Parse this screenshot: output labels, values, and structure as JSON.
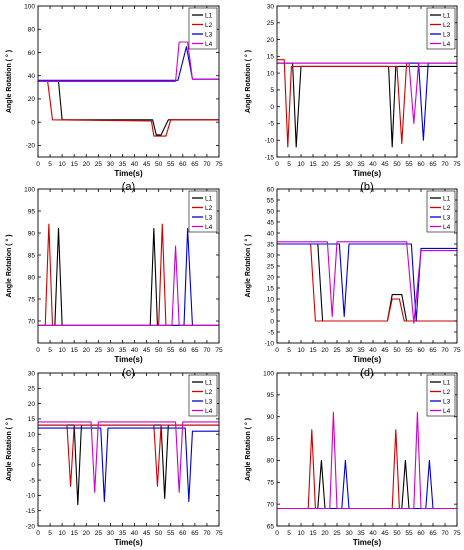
{
  "colors": {
    "L1": "#000000",
    "L2": "#cc0000",
    "L3": "#0000cc",
    "L4": "#cc00cc",
    "frame": "#000000"
  },
  "chart_data": [
    {
      "panel": "(a)",
      "type": "line",
      "xlabel": "Time(s)",
      "ylabel": "Angle Rotation ( ° )",
      "xlim": [
        0,
        75
      ],
      "ylim": [
        -30,
        100
      ],
      "xticks": [
        0,
        5,
        10,
        15,
        20,
        25,
        30,
        35,
        40,
        45,
        50,
        55,
        60,
        65,
        70,
        75
      ],
      "yticks": [
        -20,
        0,
        20,
        40,
        60,
        80,
        100
      ],
      "legend": [
        "L1",
        "L2",
        "L3",
        "L4"
      ],
      "series": [
        {
          "name": "L1",
          "x": [
            0,
            8.5,
            10,
            47.5,
            49,
            51,
            54,
            58,
            75
          ],
          "y": [
            35,
            35,
            2,
            2,
            -11,
            -11,
            2,
            2,
            2
          ]
        },
        {
          "name": "L2",
          "x": [
            0,
            4,
            6,
            47,
            48,
            53,
            55,
            75
          ],
          "y": [
            35,
            35,
            2,
            1,
            -12,
            -12,
            2,
            2
          ]
        },
        {
          "name": "L3",
          "x": [
            0,
            58,
            61.5,
            64,
            75
          ],
          "y": [
            36,
            36,
            65,
            37,
            37
          ]
        },
        {
          "name": "L4",
          "x": [
            0,
            57,
            58.5,
            62,
            64,
            75
          ],
          "y": [
            35,
            35,
            69,
            69,
            37,
            37
          ]
        }
      ]
    },
    {
      "panel": "(b)",
      "type": "line",
      "xlabel": "Time(s)",
      "ylabel": "Angle Rotation ( ° )",
      "xlim": [
        0,
        75
      ],
      "ylim": [
        -15,
        30
      ],
      "xticks": [
        0,
        5,
        10,
        15,
        20,
        25,
        30,
        35,
        40,
        45,
        50,
        55,
        60,
        65,
        70,
        75
      ],
      "yticks": [
        -15,
        -10,
        -5,
        0,
        5,
        10,
        15,
        20,
        25,
        30
      ],
      "legend": [
        "L1",
        "L2",
        "L3",
        "L4"
      ],
      "series": [
        {
          "name": "L1",
          "x": [
            0,
            6.5,
            8,
            10,
            46.5,
            48,
            49.5,
            75
          ],
          "y": [
            13,
            13,
            -12,
            12,
            12,
            -12,
            12,
            12
          ]
        },
        {
          "name": "L2",
          "x": [
            0,
            3,
            4.5,
            6,
            50,
            52,
            54,
            75
          ],
          "y": [
            14,
            14,
            -12,
            12,
            12,
            -11,
            13,
            13
          ]
        },
        {
          "name": "L3",
          "x": [
            0,
            59,
            61,
            63,
            75
          ],
          "y": [
            13,
            13,
            -10,
            13,
            13
          ]
        },
        {
          "name": "L4",
          "x": [
            0,
            55,
            57,
            59,
            75
          ],
          "y": [
            13,
            13,
            -5,
            13,
            13
          ]
        }
      ]
    },
    {
      "panel": "(c)",
      "type": "line",
      "xlabel": "Time(s)",
      "ylabel": "Angle Rotation ( ° )",
      "xlim": [
        0,
        75
      ],
      "ylim": [
        65,
        100
      ],
      "xticks": [
        0,
        5,
        10,
        15,
        20,
        25,
        30,
        35,
        40,
        45,
        50,
        55,
        60,
        65,
        70,
        75
      ],
      "yticks": [
        70,
        75,
        80,
        85,
        90,
        95,
        100
      ],
      "legend": [
        "L1",
        "L2",
        "L3",
        "L4"
      ],
      "series": [
        {
          "name": "L1",
          "x": [
            0,
            7,
            8.5,
            10,
            46.5,
            48,
            49.5,
            75
          ],
          "y": [
            69,
            69,
            91,
            69,
            69,
            91,
            69,
            69
          ]
        },
        {
          "name": "L2",
          "x": [
            0,
            3,
            4.5,
            6,
            50,
            51.5,
            53,
            75
          ],
          "y": [
            69,
            69,
            92,
            69,
            69,
            92,
            69,
            69
          ]
        },
        {
          "name": "L3",
          "x": [
            0,
            60.5,
            62,
            64,
            75
          ],
          "y": [
            69,
            69,
            91,
            69,
            69
          ]
        },
        {
          "name": "L4",
          "x": [
            0,
            55.5,
            57,
            58.5,
            75
          ],
          "y": [
            69,
            69,
            87,
            69,
            69
          ]
        }
      ]
    },
    {
      "panel": "(d)",
      "type": "line",
      "xlabel": "Time(s)",
      "ylabel": "Angle Rotation ( ° )",
      "xlim": [
        0,
        75
      ],
      "ylim": [
        -10,
        60
      ],
      "xticks": [
        0,
        5,
        10,
        15,
        20,
        25,
        30,
        35,
        40,
        45,
        50,
        55,
        60,
        65,
        70,
        75
      ],
      "yticks": [
        -10,
        -5,
        0,
        5,
        10,
        15,
        20,
        25,
        30,
        35,
        40,
        45,
        50,
        55,
        60
      ],
      "legend": [
        "L1",
        "L2",
        "L3",
        "L4"
      ],
      "series": [
        {
          "name": "L1",
          "x": [
            0,
            17,
            19,
            46,
            48,
            52,
            54,
            75
          ],
          "y": [
            35,
            35,
            0,
            0,
            12,
            12,
            0,
            0
          ]
        },
        {
          "name": "L2",
          "x": [
            0,
            14,
            16,
            46,
            48,
            51,
            53,
            75
          ],
          "y": [
            35,
            35,
            0,
            0,
            10,
            10,
            0,
            0
          ]
        },
        {
          "name": "L3",
          "x": [
            0,
            26,
            28,
            30,
            56,
            58,
            60,
            75
          ],
          "y": [
            35,
            35,
            2,
            35,
            35,
            0,
            33,
            33
          ]
        },
        {
          "name": "L4",
          "x": [
            0,
            21,
            23,
            25,
            54,
            57,
            60,
            75
          ],
          "y": [
            36,
            36,
            2,
            36,
            36,
            -1,
            32,
            32
          ]
        }
      ]
    },
    {
      "panel": "(e)",
      "type": "line",
      "xlabel": "Time(s)",
      "ylabel": "Angle Rotation ( ° )",
      "xlim": [
        0,
        75
      ],
      "ylim": [
        -20,
        30
      ],
      "xticks": [
        0,
        5,
        10,
        15,
        20,
        25,
        30,
        35,
        40,
        45,
        50,
        55,
        60,
        65,
        70,
        75
      ],
      "yticks": [
        -20,
        -15,
        -10,
        -5,
        0,
        5,
        10,
        15,
        20,
        25,
        30
      ],
      "legend": [
        "L1",
        "L2",
        "L3",
        "L4"
      ],
      "series": [
        {
          "name": "L1",
          "x": [
            0,
            15,
            16.5,
            18,
            51,
            52.5,
            54,
            75
          ],
          "y": [
            13,
            13,
            -13,
            13,
            13,
            -11,
            13,
            13
          ]
        },
        {
          "name": "L2",
          "x": [
            0,
            12,
            13.5,
            15,
            48,
            49.5,
            51,
            75
          ],
          "y": [
            13,
            13,
            -7,
            13,
            13,
            -7,
            13,
            13
          ]
        },
        {
          "name": "L3",
          "x": [
            0,
            26,
            27.5,
            29,
            61,
            62.5,
            64,
            75
          ],
          "y": [
            12,
            12,
            -12,
            12,
            12,
            -12,
            11,
            11
          ]
        },
        {
          "name": "L4",
          "x": [
            0,
            22,
            23.5,
            25,
            57,
            58.5,
            60,
            75
          ],
          "y": [
            14,
            14,
            -9,
            14,
            14,
            -9,
            14,
            14
          ]
        }
      ]
    },
    {
      "panel": "(f)",
      "type": "line",
      "xlabel": "Time(s)",
      "ylabel": "Angle Rotation ( ° )",
      "xlim": [
        0,
        75
      ],
      "ylim": [
        65,
        100
      ],
      "xticks": [
        0,
        5,
        10,
        15,
        20,
        25,
        30,
        35,
        40,
        45,
        50,
        55,
        60,
        65,
        70,
        75
      ],
      "yticks": [
        65,
        70,
        75,
        80,
        85,
        90,
        95,
        100
      ],
      "legend": [
        "L1",
        "L2",
        "L3",
        "L4"
      ],
      "series": [
        {
          "name": "L1",
          "x": [
            0,
            17,
            18.5,
            20,
            52,
            53.5,
            55,
            75
          ],
          "y": [
            69,
            69,
            80,
            69,
            69,
            80,
            69,
            69
          ]
        },
        {
          "name": "L2",
          "x": [
            0,
            13,
            14.5,
            16,
            48,
            49.5,
            51,
            75
          ],
          "y": [
            69,
            69,
            87,
            69,
            69,
            87,
            69,
            69
          ]
        },
        {
          "name": "L3",
          "x": [
            0,
            27,
            28.5,
            30,
            62,
            63.5,
            65,
            75
          ],
          "y": [
            69,
            69,
            80,
            69,
            69,
            80,
            69,
            69
          ]
        },
        {
          "name": "L4",
          "x": [
            0,
            22,
            23.5,
            25,
            57,
            58.5,
            60,
            75
          ],
          "y": [
            69,
            69,
            91,
            69,
            69,
            91,
            69,
            69
          ]
        }
      ]
    }
  ]
}
